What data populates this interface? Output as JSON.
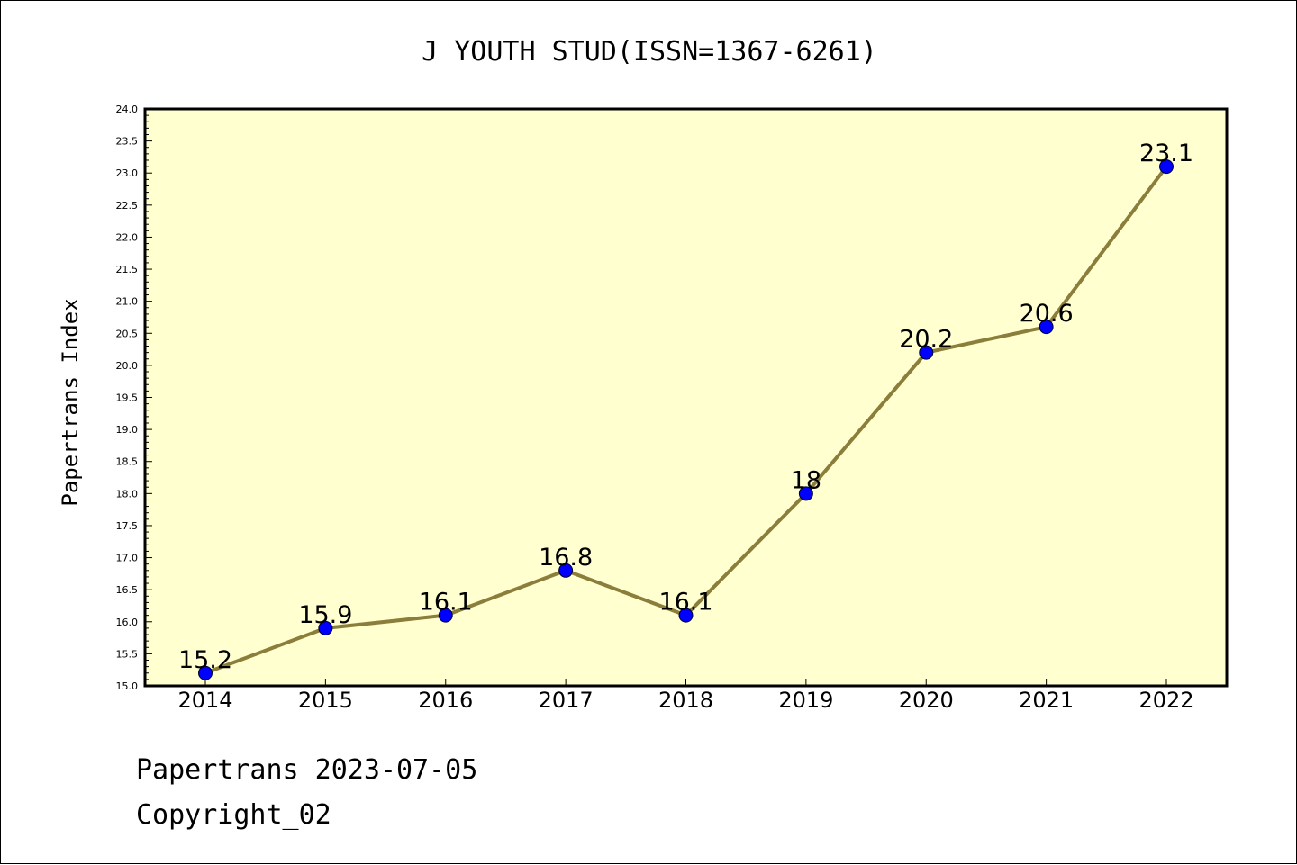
{
  "chart_data": {
    "type": "line",
    "title": "J YOUTH STUD(ISSN=1367-6261)",
    "xlabel": "",
    "ylabel": "Papertrans Index",
    "categories": [
      "2014",
      "2015",
      "2016",
      "2017",
      "2018",
      "2019",
      "2020",
      "2021",
      "2022"
    ],
    "series": [
      {
        "values": [
          15.2,
          15.9,
          16.1,
          16.8,
          16.1,
          18,
          20.2,
          20.6,
          23.1
        ],
        "labels": [
          "15.2",
          "15.9",
          "16.1",
          "16.8",
          "16.1",
          "18",
          "20.2",
          "20.6",
          "23.1"
        ]
      }
    ],
    "ylim": [
      15.0,
      24.0
    ],
    "yticks": [
      "15.0",
      "15.5",
      "16.0",
      "16.5",
      "17.0",
      "17.5",
      "18.0",
      "18.5",
      "19.0",
      "19.5",
      "20.0",
      "20.5",
      "21.0",
      "21.5",
      "22.0",
      "22.5",
      "23.0",
      "23.5",
      "24.0"
    ],
    "grid": false,
    "colors": {
      "plot_background": "#ffffd0",
      "line": "#8b7d3a",
      "marker": "#0000ff"
    }
  },
  "footer": {
    "line1": "Papertrans 2023-07-05",
    "line2": "Copyright_02"
  }
}
